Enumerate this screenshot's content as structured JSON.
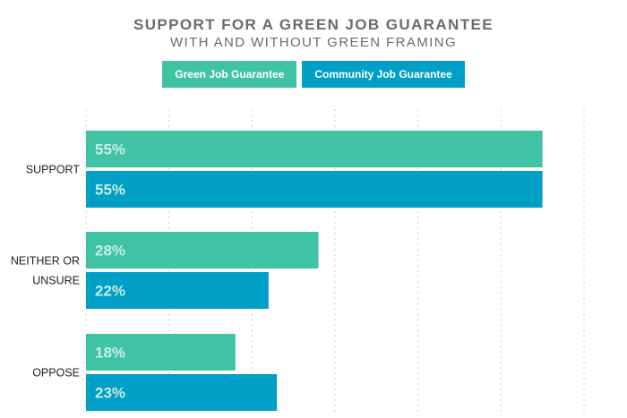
{
  "header": {
    "title": "SUPPORT FOR A GREEN JOB GUARANTEE",
    "subtitle": "WITH AND WITHOUT GREEN FRAMING"
  },
  "colors": {
    "green": "#40c3a4",
    "blue": "#00a0c6",
    "grid": "#cfcfcf"
  },
  "chart_data": {
    "type": "bar",
    "orientation": "horizontal",
    "title": "SUPPORT FOR A GREEN JOB GUARANTEE",
    "subtitle": "WITH AND WITHOUT GREEN FRAMING",
    "categories": [
      [
        "SUPPORT"
      ],
      [
        "NEITHER OR",
        "UNSURE"
      ],
      [
        "OPPOSE"
      ]
    ],
    "series": [
      {
        "name": "Green Job Guarantee",
        "values": [
          55,
          28,
          18
        ]
      },
      {
        "name": "Community Job Guarantee",
        "values": [
          55,
          22,
          23
        ]
      }
    ],
    "xlim": [
      0,
      60
    ],
    "value_suffix": "%",
    "grid": true,
    "legend_position": "top"
  }
}
